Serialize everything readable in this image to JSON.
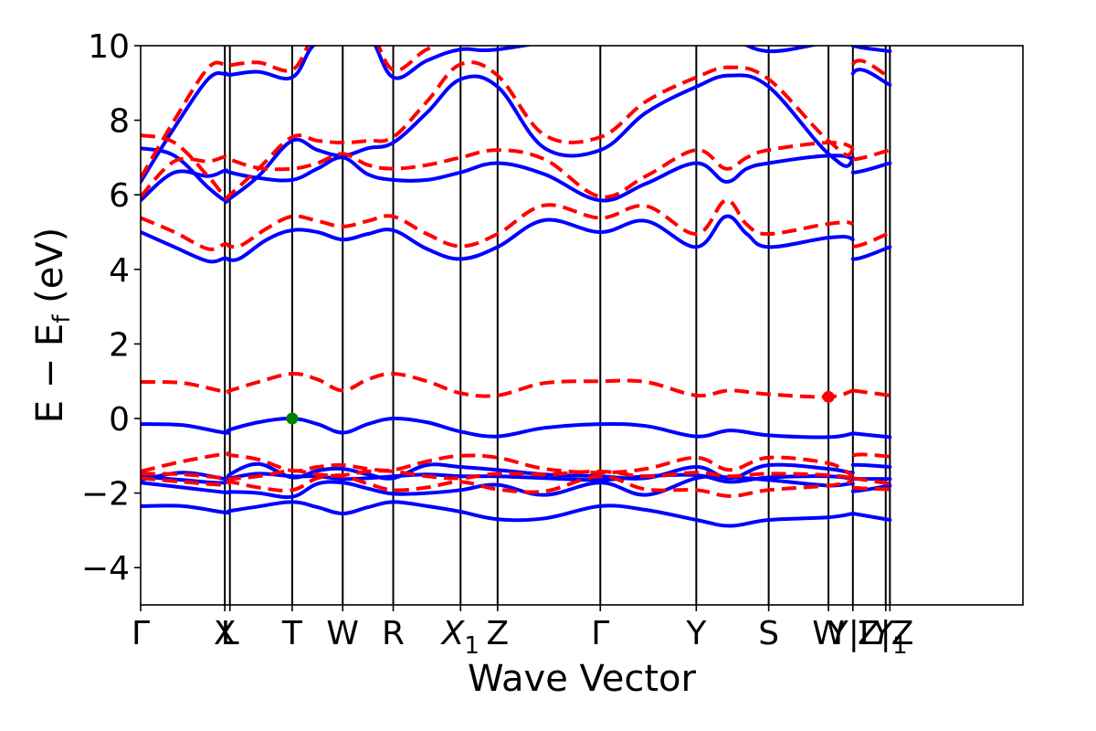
{
  "chart_data": {
    "type": "line",
    "title": "",
    "xlabel": "Wave Vector",
    "ylabel": "E − E",
    "ylabel_sub": "f",
    "ylabel_unit": "(eV)",
    "ylim": [
      -5,
      10
    ],
    "yticks": [
      -4,
      -2,
      0,
      2,
      4,
      6,
      8,
      10
    ],
    "ytick_labels": [
      "−4",
      "−2",
      "0",
      "2",
      "4",
      "6",
      "8",
      "10"
    ],
    "xlim": [
      0,
      10.48
    ],
    "kpoints": [
      {
        "pos": 0.0,
        "label": "Γ"
      },
      {
        "pos": 1.0,
        "label": "X"
      },
      {
        "pos": 1.06,
        "label": "L"
      },
      {
        "pos": 1.8,
        "label": "T"
      },
      {
        "pos": 2.4,
        "label": "W"
      },
      {
        "pos": 3.0,
        "label": "R"
      },
      {
        "pos": 3.8,
        "label": "X",
        "sub": "1"
      },
      {
        "pos": 4.24,
        "label": "Z"
      },
      {
        "pos": 5.46,
        "label": "Γ"
      },
      {
        "pos": 6.6,
        "label": "Y"
      },
      {
        "pos": 7.46,
        "label": "S"
      },
      {
        "pos": 8.17,
        "label": "W"
      },
      {
        "pos": 8.46,
        "label": "Y|L"
      },
      {
        "pos": 8.85,
        "label": "Z|Z"
      },
      {
        "pos": 8.9,
        "label": "Y",
        "sub": "1"
      }
    ],
    "series": [
      {
        "name": "spin-up band 1",
        "color": "#0000ff",
        "style": "solid",
        "x": [
          0,
          0.5,
          1.0,
          1.06,
          1.4,
          1.8,
          2.1,
          2.4,
          2.7,
          3.0,
          3.4,
          3.8,
          4.24,
          4.8,
          5.46,
          6.0,
          6.6,
          7.0,
          7.46,
          8.17,
          8.46,
          8.46,
          8.9
        ],
        "values": [
          -2.35,
          -2.35,
          -2.52,
          -2.48,
          -2.36,
          -2.24,
          -2.38,
          -2.55,
          -2.38,
          -2.24,
          -2.35,
          -2.5,
          -2.7,
          -2.68,
          -2.35,
          -2.45,
          -2.72,
          -2.88,
          -2.72,
          -2.65,
          -2.55,
          -2.55,
          -2.72
        ]
      },
      {
        "name": "spin-up band 2",
        "color": "#0000ff",
        "style": "solid",
        "x": [
          0,
          0.5,
          1.0,
          1.06,
          1.4,
          1.8,
          2.1,
          2.4,
          2.7,
          3.0,
          3.4,
          3.8,
          4.24,
          4.8,
          5.46,
          6.0,
          6.6,
          7.0,
          7.46,
          8.17,
          8.46,
          8.46,
          8.9
        ],
        "values": [
          -1.72,
          -1.85,
          -1.98,
          -1.97,
          -2.0,
          -2.1,
          -1.75,
          -1.72,
          -1.88,
          -2.02,
          -2.0,
          -1.92,
          -1.78,
          -2.05,
          -1.72,
          -2.05,
          -1.6,
          -1.58,
          -1.65,
          -1.8,
          -1.75,
          -1.95,
          -1.8
        ]
      },
      {
        "name": "spin-up band 3",
        "color": "#0000ff",
        "style": "solid",
        "x": [
          0,
          0.5,
          1.0,
          1.06,
          1.4,
          1.8,
          2.1,
          2.4,
          2.7,
          3.0,
          3.4,
          3.8,
          4.24,
          4.8,
          5.46,
          6.0,
          6.6,
          7.0,
          7.46,
          8.17,
          8.46,
          8.46,
          8.9
        ],
        "values": [
          -1.65,
          -1.45,
          -1.62,
          -1.6,
          -1.48,
          -1.55,
          -1.55,
          -1.62,
          -1.6,
          -1.55,
          -1.5,
          -1.55,
          -1.55,
          -1.6,
          -1.65,
          -1.55,
          -1.52,
          -1.7,
          -1.58,
          -1.55,
          -1.62,
          -1.62,
          -1.62
        ]
      },
      {
        "name": "spin-up band 4",
        "color": "#0000ff",
        "style": "solid",
        "x": [
          0,
          0.5,
          1.0,
          1.06,
          1.4,
          1.8,
          2.1,
          2.4,
          2.7,
          3.0,
          3.4,
          3.8,
          4.24,
          4.8,
          5.46,
          6.0,
          6.6,
          7.0,
          7.46,
          8.17,
          8.46,
          8.46,
          8.9
        ],
        "values": [
          -1.55,
          -1.65,
          -1.72,
          -1.5,
          -1.22,
          -1.58,
          -1.4,
          -1.35,
          -1.5,
          -1.6,
          -1.25,
          -1.3,
          -1.38,
          -1.5,
          -1.55,
          -1.6,
          -1.3,
          -1.6,
          -1.25,
          -1.35,
          -1.45,
          -1.25,
          -1.3
        ]
      },
      {
        "name": "spin-up band 5 (VBM)",
        "color": "#0000ff",
        "style": "solid",
        "x": [
          0,
          0.5,
          1.0,
          1.06,
          1.4,
          1.8,
          2.1,
          2.4,
          2.7,
          3.0,
          3.4,
          3.8,
          4.24,
          4.8,
          5.46,
          6.0,
          6.6,
          7.0,
          7.46,
          8.17,
          8.46,
          8.46,
          8.9
        ],
        "values": [
          -0.15,
          -0.18,
          -0.38,
          -0.3,
          -0.1,
          0.0,
          -0.15,
          -0.38,
          -0.15,
          0.0,
          -0.1,
          -0.35,
          -0.48,
          -0.25,
          -0.15,
          -0.2,
          -0.48,
          -0.32,
          -0.45,
          -0.5,
          -0.4,
          -0.4,
          -0.5
        ]
      },
      {
        "name": "spin-up band 6",
        "color": "#0000ff",
        "style": "solid",
        "x": [
          0,
          0.4,
          0.8,
          1.0,
          1.06,
          1.2,
          1.5,
          1.8,
          2.1,
          2.4,
          2.7,
          3.0,
          3.4,
          3.8,
          4.24,
          4.8,
          5.46,
          6.0,
          6.6,
          6.95,
          7.2,
          7.46,
          8.17,
          8.46,
          8.46,
          8.9
        ],
        "values": [
          5.0,
          4.6,
          4.22,
          4.3,
          4.25,
          4.32,
          4.8,
          5.05,
          5.0,
          4.8,
          4.95,
          5.05,
          4.55,
          4.28,
          4.6,
          5.32,
          5.0,
          5.3,
          4.6,
          5.42,
          4.95,
          4.6,
          4.85,
          4.8,
          4.28,
          4.6
        ]
      },
      {
        "name": "spin-up band 7",
        "color": "#0000ff",
        "style": "solid",
        "x": [
          0,
          0.4,
          0.8,
          1.0,
          1.06,
          1.4,
          1.8,
          2.1,
          2.4,
          2.7,
          3.0,
          3.4,
          3.8,
          4.24,
          4.8,
          5.46,
          6.0,
          6.6,
          6.95,
          7.2,
          7.46,
          8.17,
          8.46,
          8.46,
          8.9
        ],
        "values": [
          5.85,
          6.6,
          6.5,
          6.65,
          6.6,
          6.45,
          6.4,
          6.7,
          7.0,
          6.55,
          6.4,
          6.4,
          6.6,
          6.85,
          6.55,
          5.85,
          6.3,
          6.85,
          6.35,
          6.7,
          6.85,
          7.05,
          6.95,
          6.6,
          6.85
        ]
      },
      {
        "name": "spin-up band 8",
        "color": "#0000ff",
        "style": "solid",
        "x": [
          0,
          0.4,
          0.8,
          1.0,
          1.06,
          1.4,
          1.8,
          2.1,
          2.4,
          2.7,
          3.0,
          3.4,
          3.8,
          4.24,
          4.8,
          5.46,
          6.0,
          6.6,
          7.0,
          7.46,
          8.17,
          8.46,
          8.46,
          8.9
        ],
        "values": [
          7.25,
          7.05,
          6.2,
          5.85,
          5.9,
          6.5,
          7.45,
          7.2,
          7.05,
          7.25,
          7.4,
          8.2,
          9.1,
          8.9,
          7.25,
          7.2,
          8.2,
          8.9,
          9.2,
          8.9,
          7.1,
          7.0,
          9.25,
          8.95
        ]
      },
      {
        "name": "spin-up band 9",
        "color": "#0000ff",
        "style": "solid",
        "x": [
          0,
          0.4,
          0.8,
          1.0,
          1.06,
          1.4,
          1.8,
          2.05,
          2.35,
          2.7,
          3.0,
          3.4,
          3.8,
          4.24,
          5.46,
          6.6,
          7.0,
          7.46,
          8.17,
          8.46,
          8.46,
          8.9
        ],
        "values": [
          6.35,
          7.8,
          9.1,
          9.25,
          9.22,
          9.3,
          9.15,
          10.0,
          10.3,
          10.3,
          9.15,
          9.6,
          9.9,
          9.9,
          10.3,
          10.3,
          10.2,
          9.85,
          10.1,
          10.2,
          10.0,
          9.85
        ]
      },
      {
        "name": "spin-down band 1",
        "color": "#ff0000",
        "style": "dashed",
        "x": [
          0,
          0.5,
          1.0,
          1.06,
          1.4,
          1.8,
          2.1,
          2.4,
          2.7,
          3.0,
          3.4,
          3.8,
          4.24,
          4.8,
          5.46,
          6.0,
          6.6,
          7.0,
          7.46,
          8.17,
          8.46,
          8.46,
          8.9
        ],
        "values": [
          -1.6,
          -1.7,
          -1.78,
          -1.7,
          -1.85,
          -1.92,
          -1.6,
          -1.55,
          -1.75,
          -1.92,
          -1.85,
          -1.7,
          -1.9,
          -1.95,
          -1.55,
          -1.9,
          -1.92,
          -2.08,
          -1.92,
          -1.8,
          -1.7,
          -1.85,
          -1.9
        ]
      },
      {
        "name": "spin-down band 2",
        "color": "#ff0000",
        "style": "dashed",
        "x": [
          0,
          0.5,
          1.0,
          1.06,
          1.4,
          1.8,
          2.1,
          2.4,
          2.7,
          3.0,
          3.4,
          3.8,
          4.24,
          4.8,
          5.46,
          6.0,
          6.6,
          7.0,
          7.46,
          8.17,
          8.46,
          8.46,
          8.9
        ],
        "values": [
          -1.48,
          -1.5,
          -1.6,
          -1.62,
          -1.55,
          -1.4,
          -1.5,
          -1.52,
          -1.42,
          -1.42,
          -1.55,
          -1.6,
          -1.48,
          -1.5,
          -1.42,
          -1.55,
          -1.45,
          -1.55,
          -1.48,
          -1.52,
          -1.6,
          -1.6,
          -1.75
        ]
      },
      {
        "name": "spin-down band 3",
        "color": "#ff0000",
        "style": "dashed",
        "x": [
          0,
          0.5,
          1.0,
          1.06,
          1.4,
          1.8,
          2.1,
          2.4,
          2.7,
          3.0,
          3.4,
          3.8,
          4.24,
          4.8,
          5.46,
          6.0,
          6.6,
          7.0,
          7.46,
          8.17,
          8.46,
          8.46,
          8.9
        ],
        "values": [
          -1.42,
          -1.15,
          -0.95,
          -0.98,
          -1.1,
          -1.4,
          -1.3,
          -1.25,
          -1.35,
          -1.38,
          -1.15,
          -1.0,
          -1.05,
          -1.35,
          -1.45,
          -1.35,
          -1.05,
          -1.38,
          -1.05,
          -1.2,
          -1.5,
          -1.0,
          -1.02
        ]
      },
      {
        "name": "spin-down band 4 (CBM)",
        "color": "#ff0000",
        "style": "dashed",
        "x": [
          0,
          0.5,
          1.0,
          1.06,
          1.4,
          1.8,
          2.1,
          2.4,
          2.7,
          3.0,
          3.4,
          3.8,
          4.24,
          4.8,
          5.46,
          6.0,
          6.6,
          7.0,
          7.46,
          8.17,
          8.46,
          8.46,
          8.9
        ],
        "values": [
          0.98,
          0.95,
          0.72,
          0.75,
          0.98,
          1.2,
          1.05,
          0.75,
          1.05,
          1.2,
          1.0,
          0.68,
          0.62,
          0.95,
          1.0,
          0.98,
          0.62,
          0.75,
          0.65,
          0.58,
          0.75,
          0.75,
          0.62
        ]
      },
      {
        "name": "spin-down band 5",
        "color": "#ff0000",
        "style": "dashed",
        "x": [
          0,
          0.4,
          0.8,
          1.0,
          1.06,
          1.2,
          1.5,
          1.8,
          2.1,
          2.4,
          2.7,
          3.0,
          3.4,
          3.8,
          4.24,
          4.8,
          5.46,
          6.0,
          6.6,
          6.95,
          7.2,
          7.46,
          8.17,
          8.46,
          8.46,
          8.9
        ],
        "values": [
          5.38,
          5.0,
          4.55,
          4.68,
          4.62,
          4.65,
          5.1,
          5.42,
          5.3,
          5.15,
          5.3,
          5.42,
          4.95,
          4.62,
          4.95,
          5.72,
          5.38,
          5.7,
          4.95,
          5.85,
          5.2,
          4.95,
          5.22,
          5.2,
          4.62,
          4.98
        ]
      },
      {
        "name": "spin-down band 6",
        "color": "#ff0000",
        "style": "dashed",
        "x": [
          0,
          0.4,
          0.8,
          1.0,
          1.06,
          1.4,
          1.8,
          2.1,
          2.4,
          2.7,
          3.0,
          3.4,
          3.8,
          4.24,
          4.8,
          5.46,
          6.0,
          6.6,
          6.95,
          7.2,
          7.46,
          8.17,
          8.46,
          8.46,
          8.9
        ],
        "values": [
          5.95,
          6.9,
          6.9,
          7.02,
          6.95,
          6.72,
          6.7,
          6.85,
          7.1,
          6.8,
          6.7,
          6.8,
          7.0,
          7.2,
          6.95,
          5.95,
          6.5,
          7.2,
          6.7,
          7.0,
          7.2,
          7.4,
          7.25,
          6.95,
          7.2
        ]
      },
      {
        "name": "spin-down band 7",
        "color": "#ff0000",
        "style": "dashed",
        "x": [
          0,
          0.4,
          0.8,
          1.0,
          1.06,
          1.4,
          1.8,
          2.1,
          2.4,
          2.7,
          3.0,
          3.4,
          3.8,
          4.24,
          4.8,
          5.46,
          6.0,
          6.6,
          7.0,
          7.46,
          8.17,
          8.46,
          8.46,
          8.9
        ],
        "values": [
          7.6,
          7.4,
          6.5,
          5.95,
          6.0,
          6.7,
          7.55,
          7.45,
          7.4,
          7.45,
          7.55,
          8.5,
          9.5,
          9.2,
          7.6,
          7.55,
          8.5,
          9.15,
          9.42,
          9.1,
          7.45,
          7.25,
          9.5,
          9.15
        ]
      },
      {
        "name": "spin-down band 8",
        "color": "#ff0000",
        "style": "dashed",
        "x": [
          0,
          0.4,
          0.8,
          1.0,
          1.06,
          1.4,
          1.8,
          2.05,
          2.35,
          2.7,
          3.0,
          3.4,
          3.8,
          4.24,
          5.46,
          6.6,
          7.0,
          7.46,
          8.17,
          8.46,
          8.46,
          8.9
        ],
        "values": [
          6.45,
          8.0,
          9.4,
          9.5,
          9.48,
          9.55,
          9.35,
          10.2,
          10.5,
          10.5,
          9.35,
          9.9,
          10.2,
          10.2,
          10.5,
          10.5,
          10.4,
          10.1,
          10.3,
          10.4,
          10.2,
          10.1
        ]
      }
    ],
    "markers": [
      {
        "name": "VBM",
        "x": 1.8,
        "y": 0.0,
        "color": "#008000"
      },
      {
        "name": "CBM",
        "x": 8.17,
        "y": 0.58,
        "color": "#ff0000"
      }
    ]
  }
}
